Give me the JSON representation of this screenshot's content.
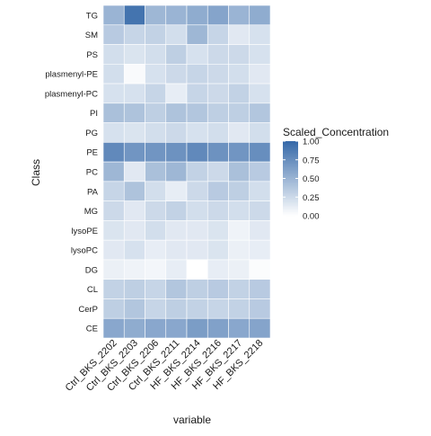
{
  "chart_data": {
    "type": "heatmap",
    "xlabel": "variable",
    "ylabel": "Class",
    "x": [
      "Ctrl_BKS_2202",
      "Ctrl_BKS_2203",
      "Ctrl_BKS_2206",
      "Ctrl_BKS_2211",
      "HF_BKS_2214",
      "HF_BKS_2216",
      "HF_BKS_2217",
      "HF_BKS_2218"
    ],
    "y": [
      "TG",
      "SM",
      "PS",
      "plasmenyl-PE",
      "plasmenyl-PC",
      "PI",
      "PG",
      "PE",
      "PC",
      "PA",
      "MG",
      "lysoPE",
      "lysoPC",
      "DG",
      "CL",
      "CerP",
      "CE"
    ],
    "values": [
      [
        0.5,
        0.92,
        0.48,
        0.5,
        0.55,
        0.6,
        0.5,
        0.55
      ],
      [
        0.35,
        0.28,
        0.3,
        0.22,
        0.48,
        0.28,
        0.15,
        0.2
      ],
      [
        0.22,
        0.18,
        0.22,
        0.32,
        0.2,
        0.25,
        0.25,
        0.2
      ],
      [
        0.22,
        0.03,
        0.2,
        0.25,
        0.28,
        0.25,
        0.22,
        0.15
      ],
      [
        0.2,
        0.2,
        0.28,
        0.12,
        0.28,
        0.25,
        0.3,
        0.2
      ],
      [
        0.42,
        0.4,
        0.32,
        0.4,
        0.38,
        0.32,
        0.32,
        0.38
      ],
      [
        0.2,
        0.18,
        0.22,
        0.25,
        0.2,
        0.22,
        0.15,
        0.22
      ],
      [
        0.78,
        0.7,
        0.7,
        0.72,
        0.78,
        0.72,
        0.7,
        0.75
      ],
      [
        0.48,
        0.15,
        0.42,
        0.48,
        0.3,
        0.25,
        0.42,
        0.35
      ],
      [
        0.28,
        0.4,
        0.22,
        0.12,
        0.25,
        0.35,
        0.32,
        0.22
      ],
      [
        0.25,
        0.15,
        0.25,
        0.3,
        0.22,
        0.25,
        0.22,
        0.25
      ],
      [
        0.18,
        0.15,
        0.22,
        0.15,
        0.15,
        0.18,
        0.08,
        0.15
      ],
      [
        0.15,
        0.2,
        0.12,
        0.15,
        0.15,
        0.18,
        0.1,
        0.12
      ],
      [
        0.1,
        0.08,
        0.06,
        0.12,
        0.0,
        0.12,
        0.1,
        0.02
      ],
      [
        0.3,
        0.32,
        0.28,
        0.38,
        0.32,
        0.35,
        0.3,
        0.35
      ],
      [
        0.32,
        0.38,
        0.28,
        0.32,
        0.3,
        0.28,
        0.3,
        0.35
      ],
      [
        0.58,
        0.55,
        0.58,
        0.58,
        0.65,
        0.62,
        0.58,
        0.6
      ]
    ],
    "legend": {
      "title": "Scaled_Concentration",
      "ticks": [
        1.0,
        0.75,
        0.5,
        0.25,
        0.0
      ],
      "tick_labels": [
        "1.00",
        "0.75",
        "0.50",
        "0.25",
        "0.00"
      ],
      "placement": "right"
    },
    "colors": {
      "low": "#ffffff",
      "high": "#3468a8"
    },
    "value_range": [
      0,
      1
    ],
    "grid": false
  }
}
